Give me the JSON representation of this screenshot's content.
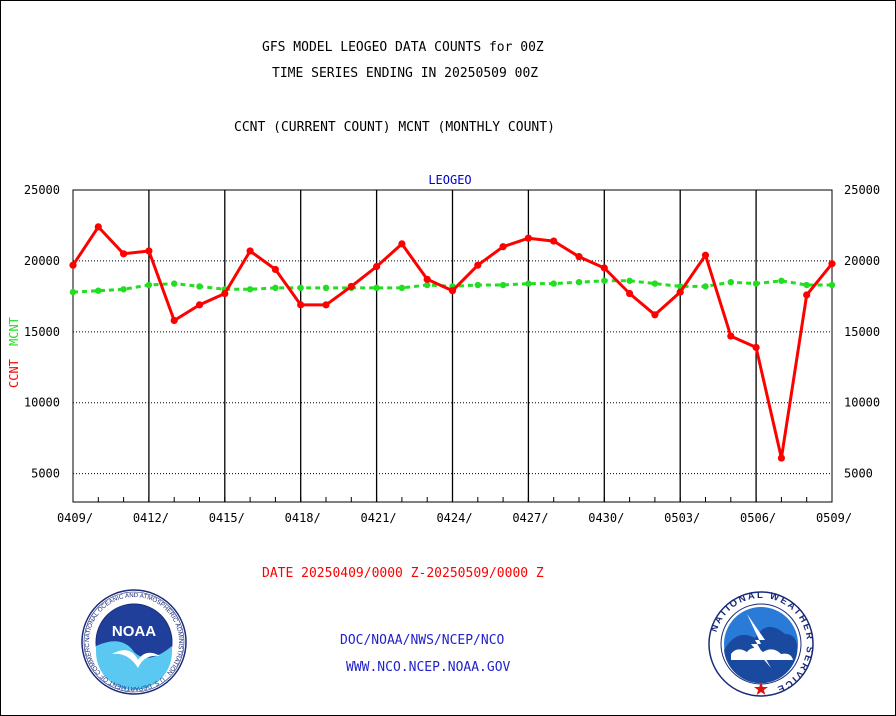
{
  "header": {
    "title_line1": "GFS MODEL LEOGEO DATA COUNTS for 00Z",
    "title_line2": "TIME SERIES ENDING IN 20250509 00Z",
    "subtitle": "CCNT (CURRENT COUNT) MCNT (MONTHLY COUNT)"
  },
  "footer": {
    "date_range": "DATE 20250409/0000 Z-20250509/0000 Z",
    "link1": "DOC/NOAA/NWS/NCEP/NCO",
    "link2": "WWW.NCO.NCEP.NOAA.GOV"
  },
  "logos": {
    "noaa_text": "NOAA",
    "noaa_ring": "NATIONAL OCEANIC AND ATMOSPHERIC ADMINISTRATION · U.S. DEPARTMENT OF COMMERCE",
    "nws_ring": "NATIONAL WEATHER SERVICE"
  },
  "colors": {
    "ccnt": "#ff0000",
    "mcnt": "#22dd22",
    "panel_label": "#0000cc",
    "date_text": "#ff0000",
    "link_text": "#2222cc"
  },
  "chart_data": {
    "type": "line",
    "panel_label": "LEOGEO",
    "ylabel_ccnt": "CCNT",
    "ylabel_mcnt": "MCNT",
    "ylim": [
      3000,
      25000
    ],
    "yticks": [
      5000,
      10000,
      15000,
      20000,
      25000
    ],
    "ytick_labels": [
      "5000",
      "10000",
      "15000",
      "20000",
      "25000"
    ],
    "xtick_labels": [
      "0409/",
      "0412/",
      "0415/",
      "0418/",
      "0421/",
      "0424/",
      "0427/",
      "0430/",
      "0503/",
      "0506/",
      "0509/"
    ],
    "x": [
      "0409",
      "0410",
      "0411",
      "0412",
      "0413",
      "0414",
      "0415",
      "0416",
      "0417",
      "0418",
      "0419",
      "0420",
      "0421",
      "0422",
      "0423",
      "0424",
      "0425",
      "0426",
      "0427",
      "0428",
      "0429",
      "0430",
      "0501",
      "0502",
      "0503",
      "0504",
      "0505",
      "0506",
      "0507",
      "0508",
      "0509"
    ],
    "grid": true,
    "series": [
      {
        "name": "CCNT",
        "values": [
          19700,
          22400,
          20500,
          20700,
          15800,
          16900,
          17700,
          20700,
          19400,
          16900,
          16900,
          18200,
          19600,
          21200,
          18700,
          17900,
          19700,
          21000,
          21600,
          21400,
          20300,
          19500,
          17700,
          16200,
          17800,
          20400,
          14700,
          13900,
          6100,
          17600,
          19800
        ]
      },
      {
        "name": "MCNT",
        "values": [
          17800,
          17900,
          18000,
          18300,
          18400,
          18200,
          18000,
          18000,
          18100,
          18100,
          18100,
          18100,
          18100,
          18100,
          18300,
          18200,
          18300,
          18300,
          18400,
          18400,
          18500,
          18600,
          18600,
          18400,
          18200,
          18200,
          18500,
          18400,
          18600,
          18300,
          18300
        ]
      }
    ]
  }
}
